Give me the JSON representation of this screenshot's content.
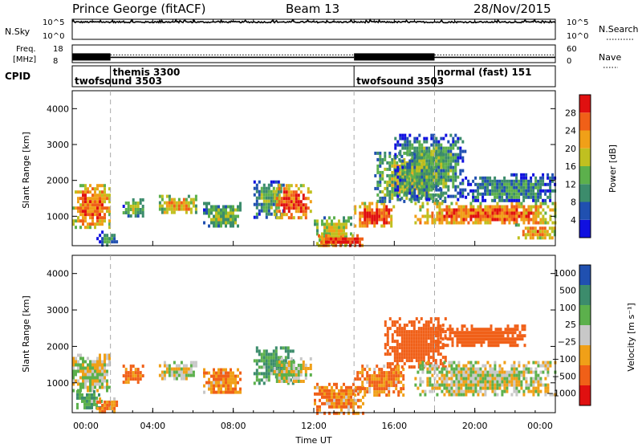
{
  "header": {
    "title": "Prince George (fitACF)",
    "beam": "Beam 13",
    "date": "28/Nov/2015"
  },
  "nsky_panel": {
    "label": "N.Sky",
    "yticks": [
      "10^5",
      "10^0"
    ],
    "right_label": "N.Search",
    "right_yticks": [
      "10^5",
      "10^0"
    ]
  },
  "freq_panel": {
    "label_top": "Freq.",
    "label_bottom": "[MHz]",
    "yticks": [
      "18",
      "8"
    ],
    "right_label": "Nave",
    "right_yticks": [
      "60",
      "0"
    ]
  },
  "cpid_panel": {
    "label": "CPID",
    "modes": [
      {
        "start_hour": 0.0,
        "text": "twofsound 3503",
        "row": "lower"
      },
      {
        "start_hour": 1.9,
        "text": "themis 3300",
        "row": "upper"
      },
      {
        "start_hour": 14.0,
        "text": "twofsound 3503",
        "row": "lower"
      },
      {
        "start_hour": 18.0,
        "text": "normal (fast) 151",
        "row": "upper"
      }
    ]
  },
  "power_panel": {
    "ylabel": "Slant Range [km]",
    "yticks": [
      "1000",
      "2000",
      "3000",
      "4000"
    ],
    "colorbar_label": "Power [dB]",
    "colorbar_ticks": [
      "4",
      "8",
      "12",
      "16",
      "20",
      "24",
      "28"
    ]
  },
  "velocity_panel": {
    "ylabel": "Slant Range [km]",
    "yticks": [
      "1000",
      "2000",
      "3000",
      "4000"
    ],
    "colorbar_label": "Velocity [m s⁻¹]",
    "colorbar_ticks": [
      "1000",
      "500",
      "100",
      "25",
      "−25",
      "−100",
      "−500",
      "−1000"
    ]
  },
  "xaxis": {
    "label": "Time UT",
    "ticks": [
      "00:00",
      "04:00",
      "08:00",
      "12:00",
      "16:00",
      "20:00",
      "00:00"
    ]
  },
  "chart_data": [
    {
      "type": "line",
      "name": "N.Sky",
      "x_range_hours": [
        0,
        24
      ],
      "y_scale": "log",
      "y_range": [
        1,
        100000
      ],
      "description_values": {
        "typical_level": 20000
      }
    },
    {
      "type": "heatmap",
      "name": "Power",
      "x_range_hours": [
        0,
        24
      ],
      "y_range_km": [
        180,
        4500
      ],
      "value_range_db": [
        0,
        30
      ],
      "colors": [
        "#1010e0",
        "#2050b0",
        "#3c8c6c",
        "#5cb04c",
        "#c0c020",
        "#f0a018",
        "#f06018",
        "#e01010"
      ],
      "regions": [
        {
          "t": [
            0.0,
            1.9
          ],
          "r": [
            700,
            1900
          ],
          "v": 24
        },
        {
          "t": [
            1.2,
            2.2
          ],
          "r": [
            200,
            600
          ],
          "v": 10
        },
        {
          "t": [
            2.5,
            3.5
          ],
          "r": [
            1000,
            1500
          ],
          "v": 14
        },
        {
          "t": [
            4.3,
            6.2
          ],
          "r": [
            1100,
            1600
          ],
          "v": 20
        },
        {
          "t": [
            6.5,
            8.4
          ],
          "r": [
            700,
            1400
          ],
          "v": 14
        },
        {
          "t": [
            9.0,
            10.5
          ],
          "r": [
            1000,
            2000
          ],
          "v": 12
        },
        {
          "t": [
            10.0,
            11.8
          ],
          "r": [
            1000,
            1900
          ],
          "v": 26
        },
        {
          "t": [
            12.0,
            13.8
          ],
          "r": [
            200,
            1000
          ],
          "v": 18
        },
        {
          "t": [
            12.2,
            14.5
          ],
          "r": [
            200,
            500
          ],
          "v": 28
        },
        {
          "t": [
            14.0,
            16.0
          ],
          "r": [
            700,
            1400
          ],
          "v": 26
        },
        {
          "t": [
            15.0,
            18.5
          ],
          "r": [
            1400,
            2800
          ],
          "v": 16
        },
        {
          "t": [
            16.0,
            19.5
          ],
          "r": [
            1500,
            3300
          ],
          "v": 12
        },
        {
          "t": [
            17.0,
            24.0
          ],
          "r": [
            800,
            1400
          ],
          "v": 24
        },
        {
          "t": [
            19.5,
            24.0
          ],
          "r": [
            1400,
            2200
          ],
          "v": 10
        },
        {
          "t": [
            22.0,
            24.0
          ],
          "r": [
            400,
            800
          ],
          "v": 22
        }
      ]
    },
    {
      "type": "heatmap",
      "name": "Velocity",
      "x_range_hours": [
        0,
        24
      ],
      "y_range_km": [
        180,
        4500
      ],
      "value_range_ms": [
        -1000,
        1000
      ],
      "colors": [
        "#e01010",
        "#f06018",
        "#f0a018",
        "#c8c8c8",
        "#5cb04c",
        "#3c8c6c",
        "#2050b0"
      ],
      "regions": [
        {
          "t": [
            0.0,
            1.9
          ],
          "r": [
            800,
            1800
          ],
          "v": 0
        },
        {
          "t": [
            0.2,
            1.5
          ],
          "r": [
            300,
            800
          ],
          "v": 100
        },
        {
          "t": [
            1.2,
            2.2
          ],
          "r": [
            200,
            600
          ],
          "v": -100
        },
        {
          "t": [
            2.5,
            3.5
          ],
          "r": [
            1000,
            1500
          ],
          "v": -100
        },
        {
          "t": [
            4.3,
            6.2
          ],
          "r": [
            1100,
            1600
          ],
          "v": 0
        },
        {
          "t": [
            6.5,
            8.4
          ],
          "r": [
            700,
            1400
          ],
          "v": -100
        },
        {
          "t": [
            9.0,
            11.0
          ],
          "r": [
            1000,
            2000
          ],
          "v": 100
        },
        {
          "t": [
            10.0,
            11.8
          ],
          "r": [
            1000,
            1700
          ],
          "v": 0
        },
        {
          "t": [
            12.0,
            14.5
          ],
          "r": [
            200,
            1000
          ],
          "v": -100
        },
        {
          "t": [
            14.0,
            16.5
          ],
          "r": [
            700,
            1500
          ],
          "v": -100
        },
        {
          "t": [
            15.5,
            18.5
          ],
          "r": [
            1400,
            2800
          ],
          "v": -200
        },
        {
          "t": [
            18.0,
            22.5
          ],
          "r": [
            2000,
            2600
          ],
          "v": -400
        },
        {
          "t": [
            17.0,
            24.0
          ],
          "r": [
            700,
            1600
          ],
          "v": 0
        }
      ]
    },
    {
      "type": "line",
      "name": "Freq.",
      "x_range_hours": [
        0,
        24
      ],
      "y_range_mhz": [
        8,
        18
      ],
      "segments": [
        {
          "t": [
            0.0,
            1.9
          ],
          "mhz": 11,
          "style": "alternating"
        },
        {
          "t": [
            1.9,
            14.0
          ],
          "mhz": 11,
          "style": "steady"
        },
        {
          "t": [
            14.0,
            18.0
          ],
          "mhz": 11,
          "style": "alternating"
        },
        {
          "t": [
            18.0,
            24.0
          ],
          "mhz": 11,
          "style": "steady"
        }
      ]
    }
  ]
}
